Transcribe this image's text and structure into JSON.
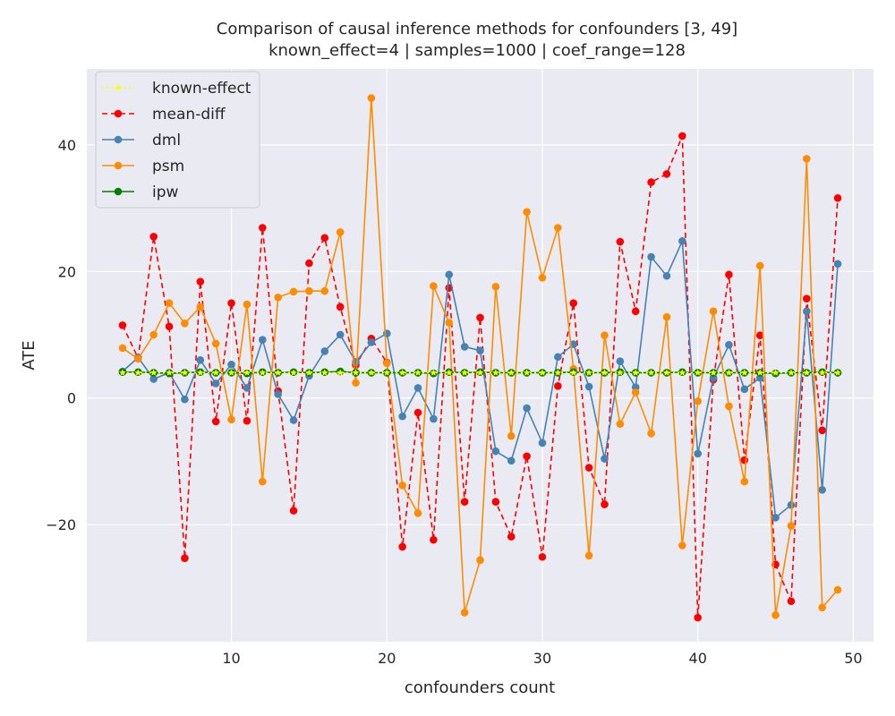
{
  "chart_data": {
    "type": "line",
    "title_lines": [
      "Comparison of causal inference methods for confounders [3, 49]",
      "known_effect=4 | samples=1000 | coef_range=128"
    ],
    "xlabel": "confounders count",
    "ylabel": "ATE",
    "xlim": [
      0.7,
      51.3
    ],
    "ylim": [
      -38.5,
      52
    ],
    "xticks": [
      10,
      20,
      30,
      40,
      50
    ],
    "yticks": [
      -20,
      0,
      20,
      40
    ],
    "grid": true,
    "legend_position": "upper-left",
    "x": [
      3,
      4,
      5,
      6,
      7,
      8,
      9,
      10,
      11,
      12,
      13,
      14,
      15,
      16,
      17,
      18,
      19,
      20,
      21,
      22,
      23,
      24,
      25,
      26,
      27,
      28,
      29,
      30,
      31,
      32,
      33,
      34,
      35,
      36,
      37,
      38,
      39,
      40,
      41,
      42,
      43,
      44,
      45,
      46,
      47,
      48,
      49
    ],
    "series": [
      {
        "name": "known-effect",
        "color": "#ffff00",
        "style": "dotted",
        "marker": "star",
        "values": [
          4,
          4,
          4,
          4,
          4,
          4,
          4,
          4,
          4,
          4,
          4,
          4,
          4,
          4,
          4,
          4,
          4,
          4,
          4,
          4,
          4,
          4,
          4,
          4,
          4,
          4,
          4,
          4,
          4,
          4,
          4,
          4,
          4,
          4,
          4,
          4,
          4,
          4,
          4,
          4,
          4,
          4,
          4,
          4,
          4,
          4,
          4
        ]
      },
      {
        "name": "mean-diff",
        "color": "#ff0000",
        "style": "dashed",
        "marker": "circle",
        "values": [
          11.5,
          6.3,
          25.5,
          11.3,
          -25.3,
          18.4,
          -3.7,
          15.0,
          -3.6,
          26.9,
          1.1,
          -17.8,
          21.3,
          25.3,
          14.4,
          5.2,
          9.4,
          5.6,
          -23.5,
          -2.3,
          -22.4,
          17.4,
          -16.4,
          12.7,
          -16.4,
          -21.9,
          -9.2,
          -25.1,
          1.9,
          15.0,
          -11.0,
          -16.8,
          24.7,
          13.7,
          34.1,
          35.4,
          41.4,
          -34.7,
          2.9,
          19.5,
          -9.8,
          9.9,
          -26.3,
          -32.1,
          15.7,
          -5.1,
          31.6
        ]
      },
      {
        "name": "dml",
        "color": "#4682b4",
        "style": "solid",
        "marker": "circle",
        "values": [
          4.2,
          6.4,
          3.0,
          4.0,
          -0.2,
          6.0,
          2.3,
          5.3,
          1.6,
          9.2,
          0.6,
          -3.5,
          3.5,
          7.4,
          10.0,
          5.7,
          8.8,
          10.2,
          -2.9,
          1.6,
          -3.3,
          19.5,
          8.1,
          7.5,
          -8.4,
          -9.9,
          -1.6,
          -7.1,
          6.5,
          8.5,
          1.8,
          -9.6,
          5.8,
          1.7,
          22.3,
          19.3,
          24.8,
          -8.8,
          3.2,
          8.4,
          1.4,
          3.2,
          -18.9,
          -16.9,
          13.7,
          -14.5,
          21.2
        ]
      },
      {
        "name": "psm",
        "color": "#ff8c00",
        "style": "solid",
        "marker": "circle",
        "values": [
          7.9,
          6.2,
          10.0,
          15.0,
          11.8,
          14.4,
          8.6,
          -3.4,
          14.8,
          -13.2,
          15.9,
          16.8,
          16.9,
          16.9,
          26.2,
          2.4,
          47.4,
          5.5,
          -13.8,
          -18.2,
          17.7,
          11.9,
          -33.9,
          -25.6,
          17.6,
          -6.0,
          29.4,
          19.0,
          26.9,
          4.6,
          -24.9,
          9.9,
          -4.1,
          0.9,
          -5.6,
          12.8,
          -23.3,
          -0.5,
          13.7,
          -1.3,
          -13.2,
          20.9,
          -34.3,
          -20.2,
          37.8,
          -33.1,
          -30.3
        ]
      },
      {
        "name": "ipw",
        "color": "#008000",
        "style": "solid",
        "marker": "circle",
        "values": [
          4.1,
          4.1,
          4.0,
          3.9,
          4.0,
          4.1,
          4.0,
          4.0,
          3.9,
          4.1,
          4.0,
          4.1,
          4.0,
          4.1,
          4.2,
          4.0,
          4.0,
          4.0,
          4.0,
          4.0,
          3.9,
          4.1,
          4.0,
          4.1,
          4.0,
          4.0,
          4.0,
          4.0,
          4.0,
          4.1,
          4.0,
          4.0,
          4.1,
          4.0,
          4.0,
          4.0,
          4.1,
          4.0,
          4.0,
          4.0,
          4.0,
          4.0,
          3.9,
          4.0,
          4.0,
          4.1,
          4.0
        ]
      }
    ]
  }
}
